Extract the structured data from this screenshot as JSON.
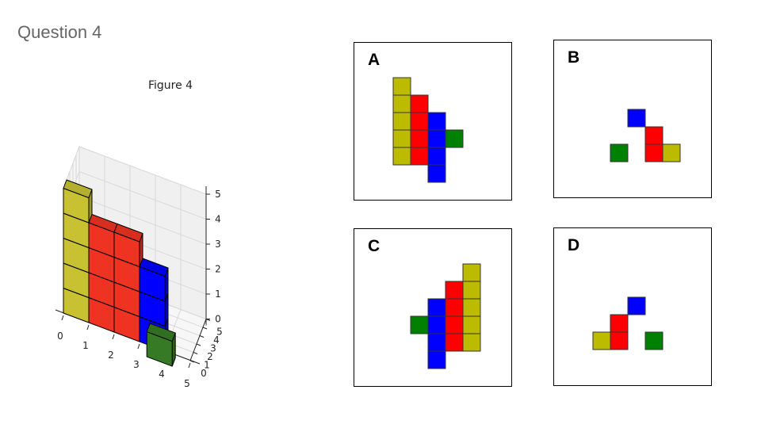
{
  "question": {
    "title": "Question 4"
  },
  "figure": {
    "title": "Figure 4",
    "x_ticks": [
      "0",
      "1",
      "2",
      "3",
      "4",
      "5"
    ],
    "y_ticks": [
      "0",
      "1",
      "2",
      "3",
      "4",
      "5"
    ],
    "z_ticks": [
      "0",
      "1",
      "2",
      "3",
      "4",
      "5"
    ]
  },
  "colors": {
    "yellow": "#c8c232",
    "red": "#ee3322",
    "blue": "#0000ff",
    "green": "#367a26",
    "yellow_flat": "#bdbb00",
    "red_flat": "#ff0000",
    "blue_flat": "#0000ff",
    "green_flat": "#008000"
  },
  "options": [
    {
      "label": "A",
      "colors": [
        "yellow",
        "yellow",
        "yellow",
        "yellow",
        "yellow",
        "red",
        "red",
        "red",
        "red",
        "blue",
        "blue",
        "blue",
        "blue",
        "green"
      ]
    },
    {
      "label": "B",
      "colors": [
        "blue",
        "red",
        "red",
        "yellow",
        "green"
      ]
    },
    {
      "label": "C",
      "colors": [
        "yellow",
        "yellow",
        "yellow",
        "yellow",
        "yellow",
        "red",
        "red",
        "red",
        "red",
        "blue",
        "blue",
        "blue",
        "blue",
        "green"
      ]
    },
    {
      "label": "D",
      "colors": [
        "blue",
        "red",
        "red",
        "yellow",
        "green"
      ]
    }
  ]
}
